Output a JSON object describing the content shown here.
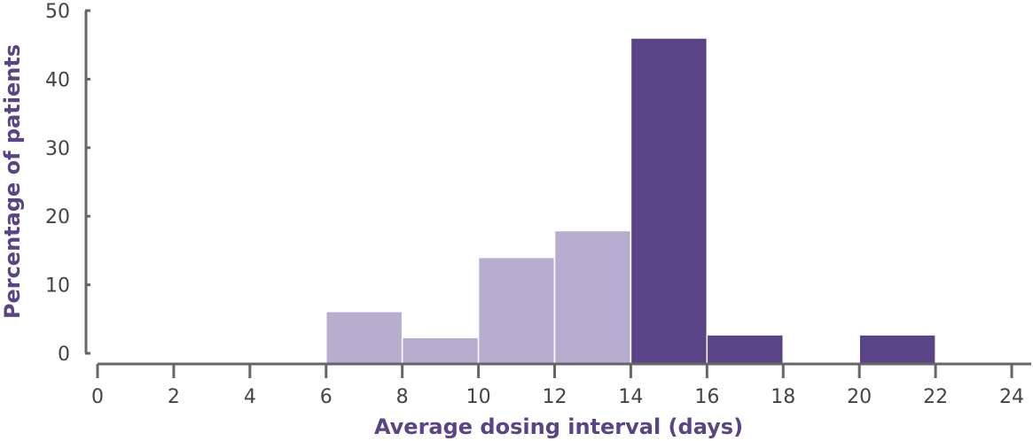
{
  "chart_data": {
    "type": "bar",
    "xlabel": "Average dosing interval (days)",
    "ylabel": "Percentage of patients",
    "xlim": [
      0,
      24
    ],
    "ylim": [
      0,
      50
    ],
    "x_ticks": [
      "0",
      "2",
      "4",
      "6",
      "8",
      "10",
      "12",
      "14",
      "16",
      "18",
      "20",
      "22",
      "24"
    ],
    "y_ticks": [
      "0",
      "10",
      "20",
      "30",
      "40",
      "50"
    ],
    "grid": false,
    "legend": "none",
    "colors": {
      "light": "#b7aecf",
      "dark": "#5a4486",
      "axis": "#666666",
      "text": "#444444"
    },
    "bins": [
      {
        "start": 6,
        "end": 8,
        "value": 6.1,
        "shade": "light"
      },
      {
        "start": 8,
        "end": 10,
        "value": 2.3,
        "shade": "light"
      },
      {
        "start": 10,
        "end": 12,
        "value": 14.0,
        "shade": "light"
      },
      {
        "start": 12,
        "end": 14,
        "value": 17.9,
        "shade": "light"
      },
      {
        "start": 14,
        "end": 16,
        "value": 46.0,
        "shade": "dark"
      },
      {
        "start": 16,
        "end": 18,
        "value": 2.7,
        "shade": "dark"
      },
      {
        "start": 20,
        "end": 22,
        "value": 2.7,
        "shade": "dark"
      }
    ]
  }
}
